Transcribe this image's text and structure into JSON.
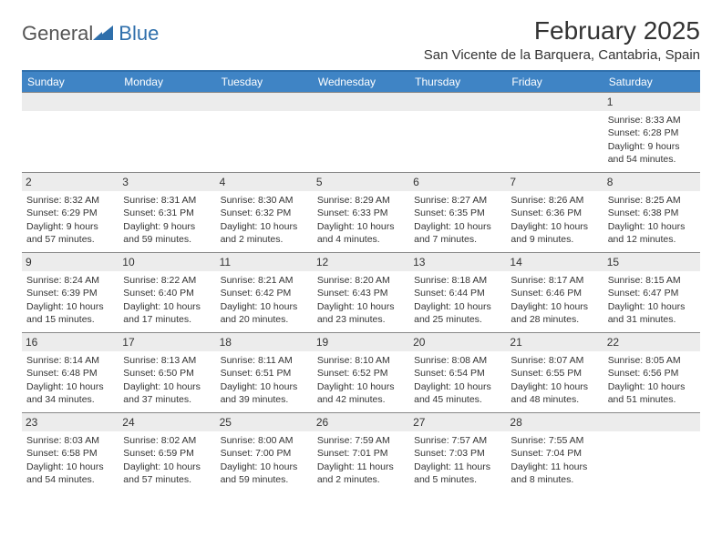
{
  "logo": {
    "part1": "General",
    "part2": "Blue"
  },
  "title": "February 2025",
  "location": "San Vicente de la Barquera, Cantabria, Spain",
  "colors": {
    "header_bg": "#3f84c5",
    "header_border": "#2f6fab",
    "daynum_bg": "#ececec",
    "row_border": "#888888",
    "text": "#333333"
  },
  "weekdays": [
    "Sunday",
    "Monday",
    "Tuesday",
    "Wednesday",
    "Thursday",
    "Friday",
    "Saturday"
  ],
  "weeks": [
    [
      null,
      null,
      null,
      null,
      null,
      null,
      {
        "n": "1",
        "sunrise": "Sunrise: 8:33 AM",
        "sunset": "Sunset: 6:28 PM",
        "day1": "Daylight: 9 hours",
        "day2": "and 54 minutes."
      }
    ],
    [
      {
        "n": "2",
        "sunrise": "Sunrise: 8:32 AM",
        "sunset": "Sunset: 6:29 PM",
        "day1": "Daylight: 9 hours",
        "day2": "and 57 minutes."
      },
      {
        "n": "3",
        "sunrise": "Sunrise: 8:31 AM",
        "sunset": "Sunset: 6:31 PM",
        "day1": "Daylight: 9 hours",
        "day2": "and 59 minutes."
      },
      {
        "n": "4",
        "sunrise": "Sunrise: 8:30 AM",
        "sunset": "Sunset: 6:32 PM",
        "day1": "Daylight: 10 hours",
        "day2": "and 2 minutes."
      },
      {
        "n": "5",
        "sunrise": "Sunrise: 8:29 AM",
        "sunset": "Sunset: 6:33 PM",
        "day1": "Daylight: 10 hours",
        "day2": "and 4 minutes."
      },
      {
        "n": "6",
        "sunrise": "Sunrise: 8:27 AM",
        "sunset": "Sunset: 6:35 PM",
        "day1": "Daylight: 10 hours",
        "day2": "and 7 minutes."
      },
      {
        "n": "7",
        "sunrise": "Sunrise: 8:26 AM",
        "sunset": "Sunset: 6:36 PM",
        "day1": "Daylight: 10 hours",
        "day2": "and 9 minutes."
      },
      {
        "n": "8",
        "sunrise": "Sunrise: 8:25 AM",
        "sunset": "Sunset: 6:38 PM",
        "day1": "Daylight: 10 hours",
        "day2": "and 12 minutes."
      }
    ],
    [
      {
        "n": "9",
        "sunrise": "Sunrise: 8:24 AM",
        "sunset": "Sunset: 6:39 PM",
        "day1": "Daylight: 10 hours",
        "day2": "and 15 minutes."
      },
      {
        "n": "10",
        "sunrise": "Sunrise: 8:22 AM",
        "sunset": "Sunset: 6:40 PM",
        "day1": "Daylight: 10 hours",
        "day2": "and 17 minutes."
      },
      {
        "n": "11",
        "sunrise": "Sunrise: 8:21 AM",
        "sunset": "Sunset: 6:42 PM",
        "day1": "Daylight: 10 hours",
        "day2": "and 20 minutes."
      },
      {
        "n": "12",
        "sunrise": "Sunrise: 8:20 AM",
        "sunset": "Sunset: 6:43 PM",
        "day1": "Daylight: 10 hours",
        "day2": "and 23 minutes."
      },
      {
        "n": "13",
        "sunrise": "Sunrise: 8:18 AM",
        "sunset": "Sunset: 6:44 PM",
        "day1": "Daylight: 10 hours",
        "day2": "and 25 minutes."
      },
      {
        "n": "14",
        "sunrise": "Sunrise: 8:17 AM",
        "sunset": "Sunset: 6:46 PM",
        "day1": "Daylight: 10 hours",
        "day2": "and 28 minutes."
      },
      {
        "n": "15",
        "sunrise": "Sunrise: 8:15 AM",
        "sunset": "Sunset: 6:47 PM",
        "day1": "Daylight: 10 hours",
        "day2": "and 31 minutes."
      }
    ],
    [
      {
        "n": "16",
        "sunrise": "Sunrise: 8:14 AM",
        "sunset": "Sunset: 6:48 PM",
        "day1": "Daylight: 10 hours",
        "day2": "and 34 minutes."
      },
      {
        "n": "17",
        "sunrise": "Sunrise: 8:13 AM",
        "sunset": "Sunset: 6:50 PM",
        "day1": "Daylight: 10 hours",
        "day2": "and 37 minutes."
      },
      {
        "n": "18",
        "sunrise": "Sunrise: 8:11 AM",
        "sunset": "Sunset: 6:51 PM",
        "day1": "Daylight: 10 hours",
        "day2": "and 39 minutes."
      },
      {
        "n": "19",
        "sunrise": "Sunrise: 8:10 AM",
        "sunset": "Sunset: 6:52 PM",
        "day1": "Daylight: 10 hours",
        "day2": "and 42 minutes."
      },
      {
        "n": "20",
        "sunrise": "Sunrise: 8:08 AM",
        "sunset": "Sunset: 6:54 PM",
        "day1": "Daylight: 10 hours",
        "day2": "and 45 minutes."
      },
      {
        "n": "21",
        "sunrise": "Sunrise: 8:07 AM",
        "sunset": "Sunset: 6:55 PM",
        "day1": "Daylight: 10 hours",
        "day2": "and 48 minutes."
      },
      {
        "n": "22",
        "sunrise": "Sunrise: 8:05 AM",
        "sunset": "Sunset: 6:56 PM",
        "day1": "Daylight: 10 hours",
        "day2": "and 51 minutes."
      }
    ],
    [
      {
        "n": "23",
        "sunrise": "Sunrise: 8:03 AM",
        "sunset": "Sunset: 6:58 PM",
        "day1": "Daylight: 10 hours",
        "day2": "and 54 minutes."
      },
      {
        "n": "24",
        "sunrise": "Sunrise: 8:02 AM",
        "sunset": "Sunset: 6:59 PM",
        "day1": "Daylight: 10 hours",
        "day2": "and 57 minutes."
      },
      {
        "n": "25",
        "sunrise": "Sunrise: 8:00 AM",
        "sunset": "Sunset: 7:00 PM",
        "day1": "Daylight: 10 hours",
        "day2": "and 59 minutes."
      },
      {
        "n": "26",
        "sunrise": "Sunrise: 7:59 AM",
        "sunset": "Sunset: 7:01 PM",
        "day1": "Daylight: 11 hours",
        "day2": "and 2 minutes."
      },
      {
        "n": "27",
        "sunrise": "Sunrise: 7:57 AM",
        "sunset": "Sunset: 7:03 PM",
        "day1": "Daylight: 11 hours",
        "day2": "and 5 minutes."
      },
      {
        "n": "28",
        "sunrise": "Sunrise: 7:55 AM",
        "sunset": "Sunset: 7:04 PM",
        "day1": "Daylight: 11 hours",
        "day2": "and 8 minutes."
      },
      null
    ]
  ]
}
